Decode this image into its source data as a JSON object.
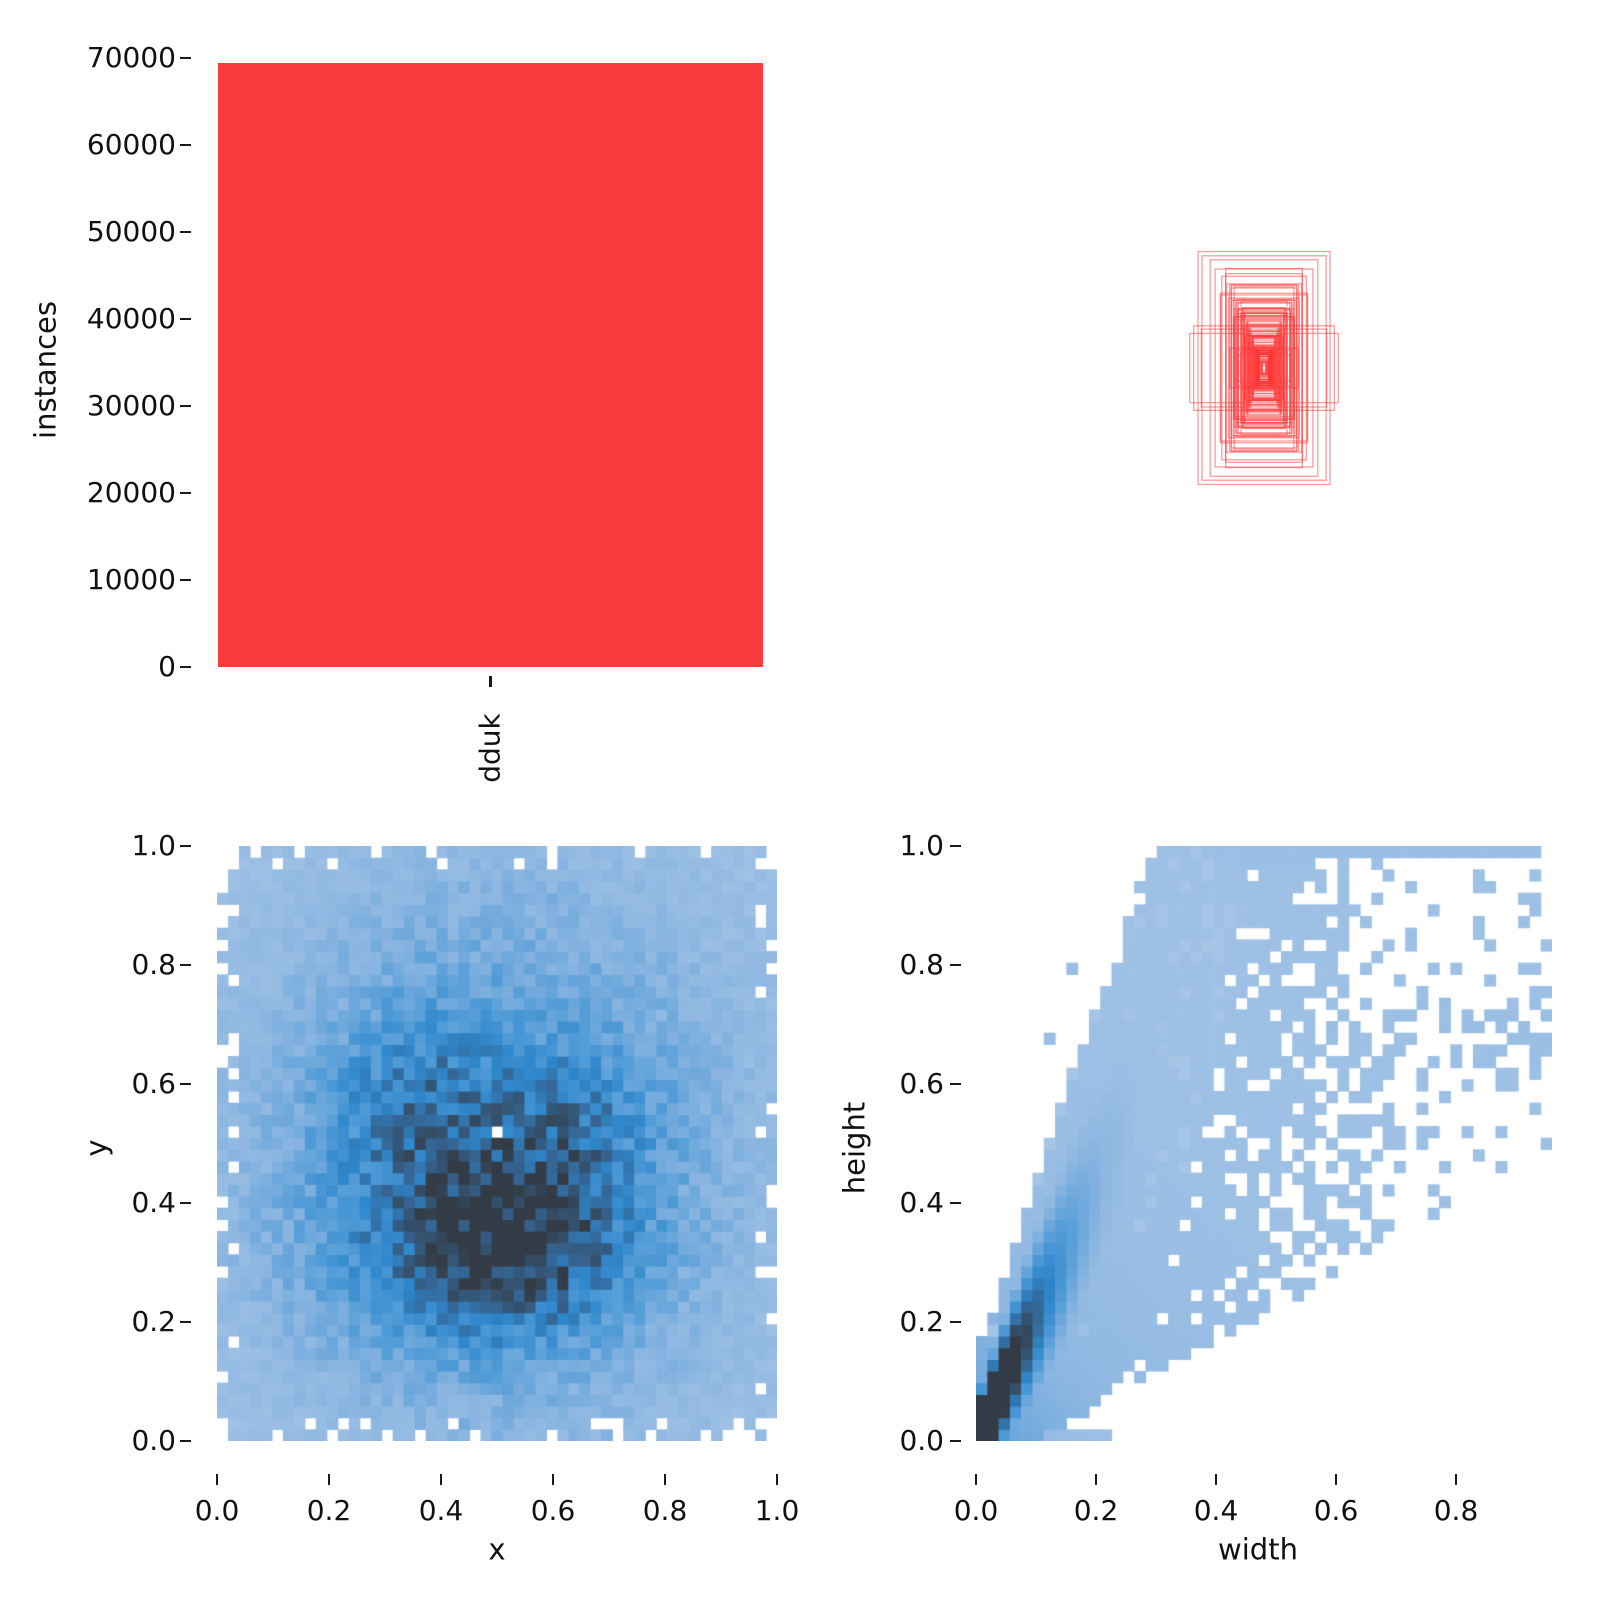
{
  "figure": {
    "background": "#ffffff",
    "text_color": "#111111"
  },
  "chart_data": [
    {
      "id": "instances_bar",
      "type": "bar",
      "title": "",
      "categories": [
        "dduk"
      ],
      "values": [
        69400
      ],
      "ylabel": "instances",
      "xlabel": "",
      "ylim": [
        0,
        72900
      ],
      "yticks": [
        0,
        10000,
        20000,
        30000,
        40000,
        50000,
        60000,
        70000
      ],
      "ytick_labels": [
        "0",
        "10000",
        "20000",
        "30000",
        "40000",
        "50000",
        "60000",
        "70000"
      ],
      "bar_color": "#fa3b3b",
      "grid": false,
      "legend": "none"
    },
    {
      "id": "boxes_overlay",
      "type": "boxes",
      "description": "all bounding boxes drawn as outlines around a common center",
      "box_color": "#ff3838",
      "box_opacity": 0.5,
      "center": [
        0.5,
        0.5
      ],
      "n_generated": 110,
      "seed": 7,
      "featured_boxes_wh": [
        [
          0.2,
          0.353
        ],
        [
          0.188,
          0.34
        ],
        [
          0.163,
          0.328
        ],
        [
          0.148,
          0.3
        ],
        [
          0.128,
          0.278
        ],
        [
          0.105,
          0.25
        ],
        [
          0.225,
          0.105
        ],
        [
          0.213,
          0.128
        ],
        [
          0.19,
          0.118
        ],
        [
          0.098,
          0.205
        ],
        [
          0.088,
          0.18
        ],
        [
          0.08,
          0.165
        ]
      ]
    },
    {
      "id": "xy_heatmap",
      "type": "heatmap",
      "xlabel": "x",
      "ylabel": "y",
      "bins": 51,
      "x_range": [
        0,
        1
      ],
      "y_range": [
        0,
        1
      ],
      "xticks": [
        0.0,
        0.2,
        0.4,
        0.6,
        0.8,
        1.0
      ],
      "xtick_labels": [
        "0.0",
        "0.2",
        "0.4",
        "0.6",
        "0.8",
        "1.0"
      ],
      "yticks": [
        0.0,
        0.2,
        0.4,
        0.6,
        0.8,
        1.0
      ],
      "ytick_labels": [
        "0.0",
        "0.2",
        "0.4",
        "0.6",
        "0.8",
        "1.0"
      ],
      "grid": false,
      "colormap_stops": [
        {
          "t": 0.0,
          "c": "#aec9e8"
        },
        {
          "t": 0.22,
          "c": "#8cb6e1"
        },
        {
          "t": 0.42,
          "c": "#549dd8"
        },
        {
          "t": 0.6,
          "c": "#2f87cc"
        },
        {
          "t": 0.78,
          "c": "#35628e"
        },
        {
          "t": 1.0,
          "c": "#333c46"
        }
      ],
      "density": {
        "seed": 11,
        "base": 0.17,
        "scale": 2.0,
        "noise": 0.56,
        "blobs": [
          {
            "cx": 0.5,
            "cy": 0.48,
            "sx": 0.3,
            "sy": 0.33,
            "w": 0.75
          },
          {
            "cx": 0.52,
            "cy": 0.34,
            "sx": 0.135,
            "sy": 0.105,
            "w": 1.35
          },
          {
            "cx": 0.36,
            "cy": 0.57,
            "sx": 0.11,
            "sy": 0.1,
            "w": 0.5
          },
          {
            "cx": 0.64,
            "cy": 0.54,
            "sx": 0.1,
            "sy": 0.09,
            "w": 0.4
          },
          {
            "cx": 0.28,
            "cy": 0.33,
            "sx": 0.13,
            "sy": 0.12,
            "w": 0.22
          }
        ],
        "mask_exponent": 10,
        "mask_radius": 0.515,
        "edge_dropout_p": 0.18,
        "holes": [
          [
            0.5,
            0.525
          ]
        ]
      }
    },
    {
      "id": "wh_heatmap",
      "type": "heatmap",
      "xlabel": "width",
      "ylabel": "height",
      "bins": 51,
      "x_range": [
        0,
        0.96
      ],
      "y_range": [
        0,
        1
      ],
      "xticks": [
        0.0,
        0.2,
        0.4,
        0.6,
        0.8
      ],
      "xtick_labels": [
        "0.0",
        "0.2",
        "0.4",
        "0.6",
        "0.8"
      ],
      "yticks": [
        0.0,
        0.2,
        0.4,
        0.6,
        0.8,
        1.0
      ],
      "ytick_labels": [
        "0.0",
        "0.2",
        "0.4",
        "0.6",
        "0.8",
        "1.0"
      ],
      "grid": false,
      "colormap_stops": [
        {
          "t": 0.0,
          "c": "#aec9e8"
        },
        {
          "t": 0.22,
          "c": "#8cb6e1"
        },
        {
          "t": 0.42,
          "c": "#549dd8"
        },
        {
          "t": 0.6,
          "c": "#2f87cc"
        },
        {
          "t": 0.78,
          "c": "#35628e"
        },
        {
          "t": 1.0,
          "c": "#333c46"
        }
      ],
      "density": {
        "seed": 23,
        "streak": {
          "slope": 2.1,
          "sigma0": 0.035,
          "sigma_k": 0.5,
          "amp": 2.4,
          "decay": 0.09
        },
        "fan": {
          "lower_slope": 0.55,
          "lower_off": -0.05,
          "upper_slope": 2.9,
          "upper_off": 0.14,
          "base": 0.1,
          "grad_amp": 0.3,
          "grad_len": 0.28
        },
        "top_band": {
          "h_min": 0.978,
          "w_min": 0.43,
          "w_max": 0.94,
          "v": 0.12
        },
        "near_top_band": {
          "h_min": 0.952,
          "h_max": 0.978,
          "w_min": 0.44,
          "w_max": 0.56,
          "v": 0.12
        },
        "bottom_row": {
          "h_max": 0.022,
          "w_max": 0.235,
          "amp": 0.45,
          "decay": 0.06,
          "base": 0.1
        },
        "right_patch": {
          "h": [
            0.62,
            0.74
          ],
          "w": [
            0.7,
            0.965
          ],
          "p": 0.3,
          "v": 0.12
        },
        "extra_cells": [
          [
            0.12,
            0.68
          ],
          [
            0.155,
            0.8
          ],
          [
            0.38,
            0.99
          ],
          [
            0.405,
            0.985
          ],
          [
            0.59,
            0.7
          ],
          [
            0.86,
            0.72
          ],
          [
            0.88,
            0.7
          ],
          [
            0.91,
            0.69
          ],
          [
            0.93,
            0.67
          ]
        ]
      }
    }
  ]
}
